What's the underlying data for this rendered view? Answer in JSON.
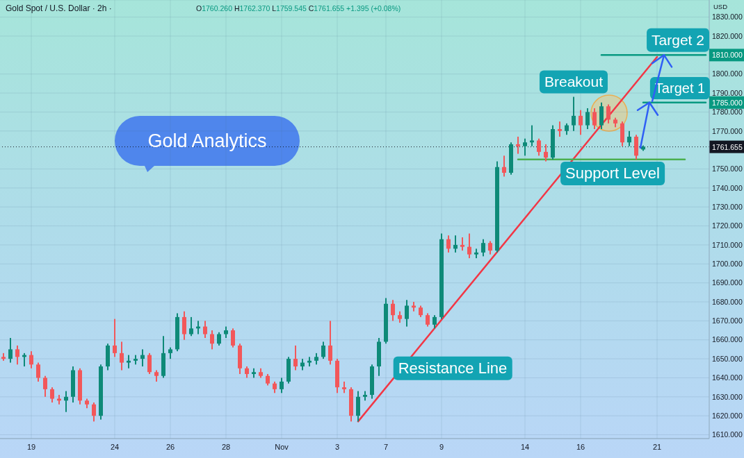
{
  "chart_data": {
    "type": "candlestick",
    "title": "Gold Spot / U.S. Dollar · 2h ·",
    "subtitle": "O1760.260 H1762.370 L1759.545 C1761.655 +1.395 (+0.08%)",
    "ylabel": "USD",
    "annotations": [
      "Gold Analytics",
      "Breakout",
      {
        "text": "Target 2",
        "y": 1810
      },
      {
        "text": "Target 1",
        "y": 1785
      },
      {
        "text": "Support Level",
        "y": 1755
      },
      "Resistance Line"
    ],
    "categories": [
      null,
      null,
      null,
      null,
      "19",
      null,
      null,
      null,
      null,
      null,
      null,
      null,
      null,
      null,
      null,
      null,
      "24",
      null,
      null,
      null,
      null,
      null,
      null,
      null,
      "26",
      null,
      null,
      null,
      null,
      null,
      null,
      null,
      "28",
      null,
      null,
      null,
      null,
      null,
      null,
      null,
      "Nov",
      null,
      null,
      null,
      null,
      null,
      null,
      null,
      "3",
      null,
      null,
      null,
      null,
      null,
      null,
      "7",
      null,
      null,
      null,
      null,
      null,
      null,
      null,
      "9",
      null,
      null,
      null,
      null,
      null,
      null,
      null,
      null,
      null,
      null,
      null,
      "14",
      null,
      null,
      null,
      null,
      null,
      null,
      null,
      "16",
      null,
      null,
      null,
      null,
      null,
      null,
      null,
      null,
      null,
      null,
      "21",
      null,
      null,
      null,
      null,
      null,
      null,
      null
    ],
    "ohlc": [
      [
        1651,
        1653,
        1649,
        1650
      ],
      [
        1650,
        1661,
        1648,
        1655
      ],
      [
        1655,
        1657,
        1647,
        1651
      ],
      [
        1651,
        1653,
        1646,
        1652
      ],
      [
        1652,
        1654,
        1645,
        1647
      ],
      [
        1647,
        1648,
        1638,
        1640
      ],
      [
        1640,
        1641,
        1630,
        1634
      ],
      [
        1634,
        1635,
        1627,
        1629
      ],
      [
        1629,
        1631,
        1626,
        1628
      ],
      [
        1628,
        1633,
        1622,
        1630
      ],
      [
        1630,
        1646,
        1627,
        1644
      ],
      [
        1644,
        1645,
        1626,
        1628
      ],
      [
        1628,
        1629,
        1624,
        1626
      ],
      [
        1626,
        1627,
        1617,
        1620
      ],
      [
        1620,
        1647,
        1618,
        1646
      ],
      [
        1646,
        1658,
        1644,
        1657
      ],
      [
        1657,
        1671,
        1651,
        1653
      ],
      [
        1653,
        1659,
        1644,
        1648
      ],
      [
        1648,
        1652,
        1645,
        1649
      ],
      [
        1649,
        1652,
        1647,
        1650
      ],
      [
        1650,
        1655,
        1646,
        1652
      ],
      [
        1652,
        1653,
        1642,
        1643
      ],
      [
        1643,
        1644,
        1638,
        1641
      ],
      [
        1641,
        1662,
        1640,
        1653
      ],
      [
        1653,
        1656,
        1650,
        1655
      ],
      [
        1655,
        1674,
        1654,
        1672
      ],
      [
        1672,
        1675,
        1660,
        1663
      ],
      [
        1663,
        1672,
        1662,
        1666
      ],
      [
        1666,
        1670,
        1663,
        1667
      ],
      [
        1667,
        1670,
        1661,
        1663
      ],
      [
        1663,
        1665,
        1655,
        1658
      ],
      [
        1658,
        1664,
        1657,
        1663
      ],
      [
        1663,
        1667,
        1661,
        1665
      ],
      [
        1665,
        1666,
        1656,
        1657
      ],
      [
        1657,
        1658,
        1642,
        1645
      ],
      [
        1645,
        1646,
        1640,
        1642
      ],
      [
        1642,
        1645,
        1640,
        1643
      ],
      [
        1643,
        1645,
        1640,
        1641
      ],
      [
        1641,
        1642,
        1636,
        1637
      ],
      [
        1637,
        1638,
        1632,
        1634
      ],
      [
        1634,
        1640,
        1632,
        1638
      ],
      [
        1638,
        1651,
        1637,
        1650
      ],
      [
        1650,
        1657,
        1644,
        1646
      ],
      [
        1646,
        1650,
        1644,
        1648
      ],
      [
        1648,
        1651,
        1646,
        1649
      ],
      [
        1649,
        1653,
        1647,
        1651
      ],
      [
        1651,
        1659,
        1650,
        1657
      ],
      [
        1657,
        1670,
        1647,
        1649
      ],
      [
        1649,
        1650,
        1632,
        1635
      ],
      [
        1635,
        1638,
        1632,
        1634
      ],
      [
        1634,
        1635,
        1617,
        1620
      ],
      [
        1620,
        1633,
        1617,
        1630
      ],
      [
        1630,
        1633,
        1628,
        1631
      ],
      [
        1631,
        1647,
        1629,
        1646
      ],
      [
        1646,
        1661,
        1641,
        1659
      ],
      [
        1659,
        1682,
        1658,
        1679
      ],
      [
        1679,
        1681,
        1670,
        1673
      ],
      [
        1673,
        1675,
        1669,
        1671
      ],
      [
        1671,
        1681,
        1667,
        1678
      ],
      [
        1678,
        1680,
        1675,
        1677
      ],
      [
        1677,
        1678,
        1672,
        1673
      ],
      [
        1673,
        1674,
        1667,
        1668
      ],
      [
        1668,
        1673,
        1666,
        1672
      ],
      [
        1672,
        1716,
        1671,
        1713
      ],
      [
        1713,
        1715,
        1706,
        1708
      ],
      [
        1708,
        1715,
        1706,
        1710
      ],
      [
        1710,
        1714,
        1707,
        1709
      ],
      [
        1709,
        1716,
        1703,
        1705
      ],
      [
        1705,
        1708,
        1703,
        1706
      ],
      [
        1706,
        1713,
        1704,
        1711
      ],
      [
        1711,
        1712,
        1705,
        1707
      ],
      [
        1707,
        1754,
        1706,
        1751
      ],
      [
        1751,
        1757,
        1746,
        1748
      ],
      [
        1748,
        1764,
        1747,
        1763
      ],
      [
        1763,
        1767,
        1758,
        1762
      ],
      [
        1762,
        1766,
        1757,
        1764
      ],
      [
        1764,
        1773,
        1762,
        1765
      ],
      [
        1765,
        1766,
        1757,
        1759
      ],
      [
        1759,
        1763,
        1754,
        1756
      ],
      [
        1756,
        1773,
        1755,
        1771
      ],
      [
        1771,
        1775,
        1767,
        1770
      ],
      [
        1770,
        1774,
        1768,
        1773
      ],
      [
        1773,
        1788,
        1770,
        1778
      ],
      [
        1778,
        1781,
        1768,
        1773
      ],
      [
        1773,
        1782,
        1771,
        1780
      ],
      [
        1780,
        1782,
        1771,
        1773
      ],
      [
        1773,
        1785,
        1771,
        1783
      ],
      [
        1783,
        1784,
        1774,
        1776
      ],
      [
        1776,
        1777,
        1772,
        1774
      ],
      [
        1774,
        1775,
        1762,
        1764
      ],
      [
        1764,
        1770,
        1762,
        1767
      ],
      [
        1767,
        1768,
        1755,
        1757
      ],
      [
        1760.26,
        1762.37,
        1759.545,
        1761.655
      ],
      null,
      null,
      null,
      null,
      null,
      null,
      null,
      null,
      null
    ],
    "series": [
      {
        "type": "line",
        "color": "#f23645",
        "values": [
          null,
          null,
          null,
          null,
          null,
          null,
          null,
          null,
          null,
          null,
          null,
          null,
          null,
          null,
          null,
          null,
          null,
          null,
          null,
          null,
          null,
          null,
          null,
          null,
          null,
          null,
          null,
          null,
          null,
          null,
          null,
          null,
          null,
          null,
          null,
          null,
          null,
          null,
          null,
          null,
          null,
          null,
          null,
          null,
          null,
          null,
          null,
          null,
          null,
          null,
          null,
          1617,
          null,
          null,
          null,
          null,
          null,
          null,
          null,
          null,
          null,
          null,
          null,
          null,
          null,
          null,
          null,
          null,
          null,
          null,
          null,
          null,
          null,
          null,
          null,
          null,
          null,
          null,
          null,
          null,
          null,
          null,
          null,
          null,
          null,
          null,
          null,
          null,
          null,
          null,
          null,
          null,
          null,
          null,
          1809,
          null,
          null,
          null,
          null,
          null,
          null,
          null
        ]
      },
      {
        "type": "line",
        "color": "#089981",
        "values": [
          null,
          null,
          null,
          null,
          null,
          null,
          null,
          null,
          null,
          null,
          null,
          null,
          null,
          null,
          null,
          null,
          null,
          null,
          null,
          null,
          null,
          null,
          null,
          null,
          null,
          null,
          null,
          null,
          null,
          null,
          null,
          null,
          null,
          null,
          null,
          null,
          null,
          null,
          null,
          null,
          null,
          null,
          null,
          null,
          null,
          null,
          null,
          null,
          null,
          null,
          null,
          null,
          null,
          null,
          null,
          null,
          null,
          null,
          null,
          null,
          null,
          null,
          null,
          null,
          null,
          null,
          null,
          null,
          null,
          null,
          null,
          null,
          null,
          null,
          null,
          null,
          null,
          null,
          null,
          null,
          null,
          null,
          null,
          null,
          null,
          null,
          1810,
          null,
          null,
          null,
          null,
          null,
          null,
          null,
          null,
          null,
          null,
          null,
          null,
          null,
          null,
          1810
        ],
        "value_labels": [
          null,
          null,
          null,
          null,
          null,
          null,
          null,
          null,
          null,
          null,
          null,
          null,
          null,
          null,
          null,
          null,
          null,
          null,
          null,
          null,
          null,
          null,
          null,
          null,
          null,
          null,
          null,
          null,
          null,
          null,
          null,
          null,
          null,
          null,
          null,
          null,
          null,
          null,
          null,
          null,
          null,
          null,
          null,
          null,
          null,
          null,
          null,
          null,
          null,
          null,
          null,
          null,
          null,
          null,
          null,
          null,
          null,
          null,
          null,
          null,
          null,
          null,
          null,
          null,
          null,
          null,
          null,
          null,
          null,
          null,
          null,
          null,
          null,
          null,
          null,
          null,
          null,
          null,
          null,
          null,
          null,
          null,
          null,
          null,
          null,
          null,
          null,
          null,
          null,
          null,
          null,
          null,
          null,
          null,
          null,
          null,
          null,
          null,
          null,
          null,
          null,
          "1810.000"
        ]
      },
      {
        "type": "line",
        "color": "#089981",
        "values": [
          null,
          null,
          null,
          null,
          null,
          null,
          null,
          null,
          null,
          null,
          null,
          null,
          null,
          null,
          null,
          null,
          null,
          null,
          null,
          null,
          null,
          null,
          null,
          null,
          null,
          null,
          null,
          null,
          null,
          null,
          null,
          null,
          null,
          null,
          null,
          null,
          null,
          null,
          null,
          null,
          null,
          null,
          null,
          null,
          null,
          null,
          null,
          null,
          null,
          null,
          null,
          null,
          null,
          null,
          null,
          null,
          null,
          null,
          null,
          null,
          null,
          null,
          null,
          null,
          null,
          null,
          null,
          null,
          null,
          null,
          null,
          null,
          null,
          null,
          null,
          null,
          null,
          null,
          null,
          null,
          null,
          null,
          null,
          null,
          null,
          null,
          null,
          null,
          null,
          null,
          null,
          null,
          1785,
          null,
          null,
          null,
          null,
          null,
          null,
          null,
          null,
          1785
        ],
        "value_labels": [
          null,
          null,
          null,
          null,
          null,
          null,
          null,
          null,
          null,
          null,
          null,
          null,
          null,
          null,
          null,
          null,
          null,
          null,
          null,
          null,
          null,
          null,
          null,
          null,
          null,
          null,
          null,
          null,
          null,
          null,
          null,
          null,
          null,
          null,
          null,
          null,
          null,
          null,
          null,
          null,
          null,
          null,
          null,
          null,
          null,
          null,
          null,
          null,
          null,
          null,
          null,
          null,
          null,
          null,
          null,
          null,
          null,
          null,
          null,
          null,
          null,
          null,
          null,
          null,
          null,
          null,
          null,
          null,
          null,
          null,
          null,
          null,
          null,
          null,
          null,
          null,
          null,
          null,
          null,
          null,
          null,
          null,
          null,
          null,
          null,
          null,
          null,
          null,
          null,
          null,
          null,
          null,
          null,
          null,
          null,
          null,
          null,
          null,
          null,
          null,
          null,
          "1785.000"
        ]
      },
      {
        "type": "line",
        "color": "#4caf50",
        "values": [
          null,
          null,
          null,
          null,
          null,
          null,
          null,
          null,
          null,
          null,
          null,
          null,
          null,
          null,
          null,
          null,
          null,
          null,
          null,
          null,
          null,
          null,
          null,
          null,
          null,
          null,
          null,
          null,
          null,
          null,
          null,
          null,
          null,
          null,
          null,
          null,
          null,
          null,
          null,
          null,
          null,
          null,
          null,
          null,
          null,
          null,
          null,
          null,
          null,
          null,
          null,
          null,
          null,
          null,
          null,
          null,
          null,
          null,
          null,
          null,
          null,
          null,
          null,
          null,
          null,
          null,
          null,
          null,
          null,
          null,
          null,
          null,
          null,
          null,
          1755,
          null,
          null,
          null,
          null,
          null,
          null,
          null,
          null,
          null,
          null,
          null,
          null,
          null,
          null,
          null,
          null,
          null,
          null,
          null,
          null,
          null,
          null,
          null,
          1755,
          null,
          null,
          null
        ]
      }
    ],
    "ylim": [
      1608,
      1839
    ],
    "yticks": [
      {
        "value": 1610,
        "label": "1610.000"
      },
      {
        "value": 1620,
        "label": "1620.000"
      },
      {
        "value": 1630,
        "label": "1630.000"
      },
      {
        "value": 1640,
        "label": "1640.000"
      },
      {
        "value": 1650,
        "label": "1650.000"
      },
      {
        "value": 1660,
        "label": "1660.000"
      },
      {
        "value": 1670,
        "label": "1670.000"
      },
      {
        "value": 1680,
        "label": "1680.000"
      },
      {
        "value": 1690,
        "label": "1690.000"
      },
      {
        "value": 1700,
        "label": "1700.000"
      },
      {
        "value": 1710,
        "label": "1710.000"
      },
      {
        "value": 1720,
        "label": "1720.000"
      },
      {
        "value": 1730,
        "label": "1730.000"
      },
      {
        "value": 1740,
        "label": "1740.000"
      },
      {
        "value": 1750,
        "label": "1750.000"
      },
      {
        "value": 1770,
        "label": "1770.000"
      },
      {
        "value": 1780,
        "label": "1780.000"
      },
      {
        "value": 1790,
        "label": "1790.000"
      },
      {
        "value": 1800,
        "label": "1800.000"
      },
      {
        "value": 1820,
        "label": "1820.000"
      },
      {
        "value": 1830,
        "label": "1830.000"
      }
    ],
    "ref_lines": [
      {
        "axis": "y",
        "value": 1761.655,
        "label": "1761.655",
        "color": "#131722",
        "line_style": "dotted"
      }
    ],
    "grid": true
  }
}
